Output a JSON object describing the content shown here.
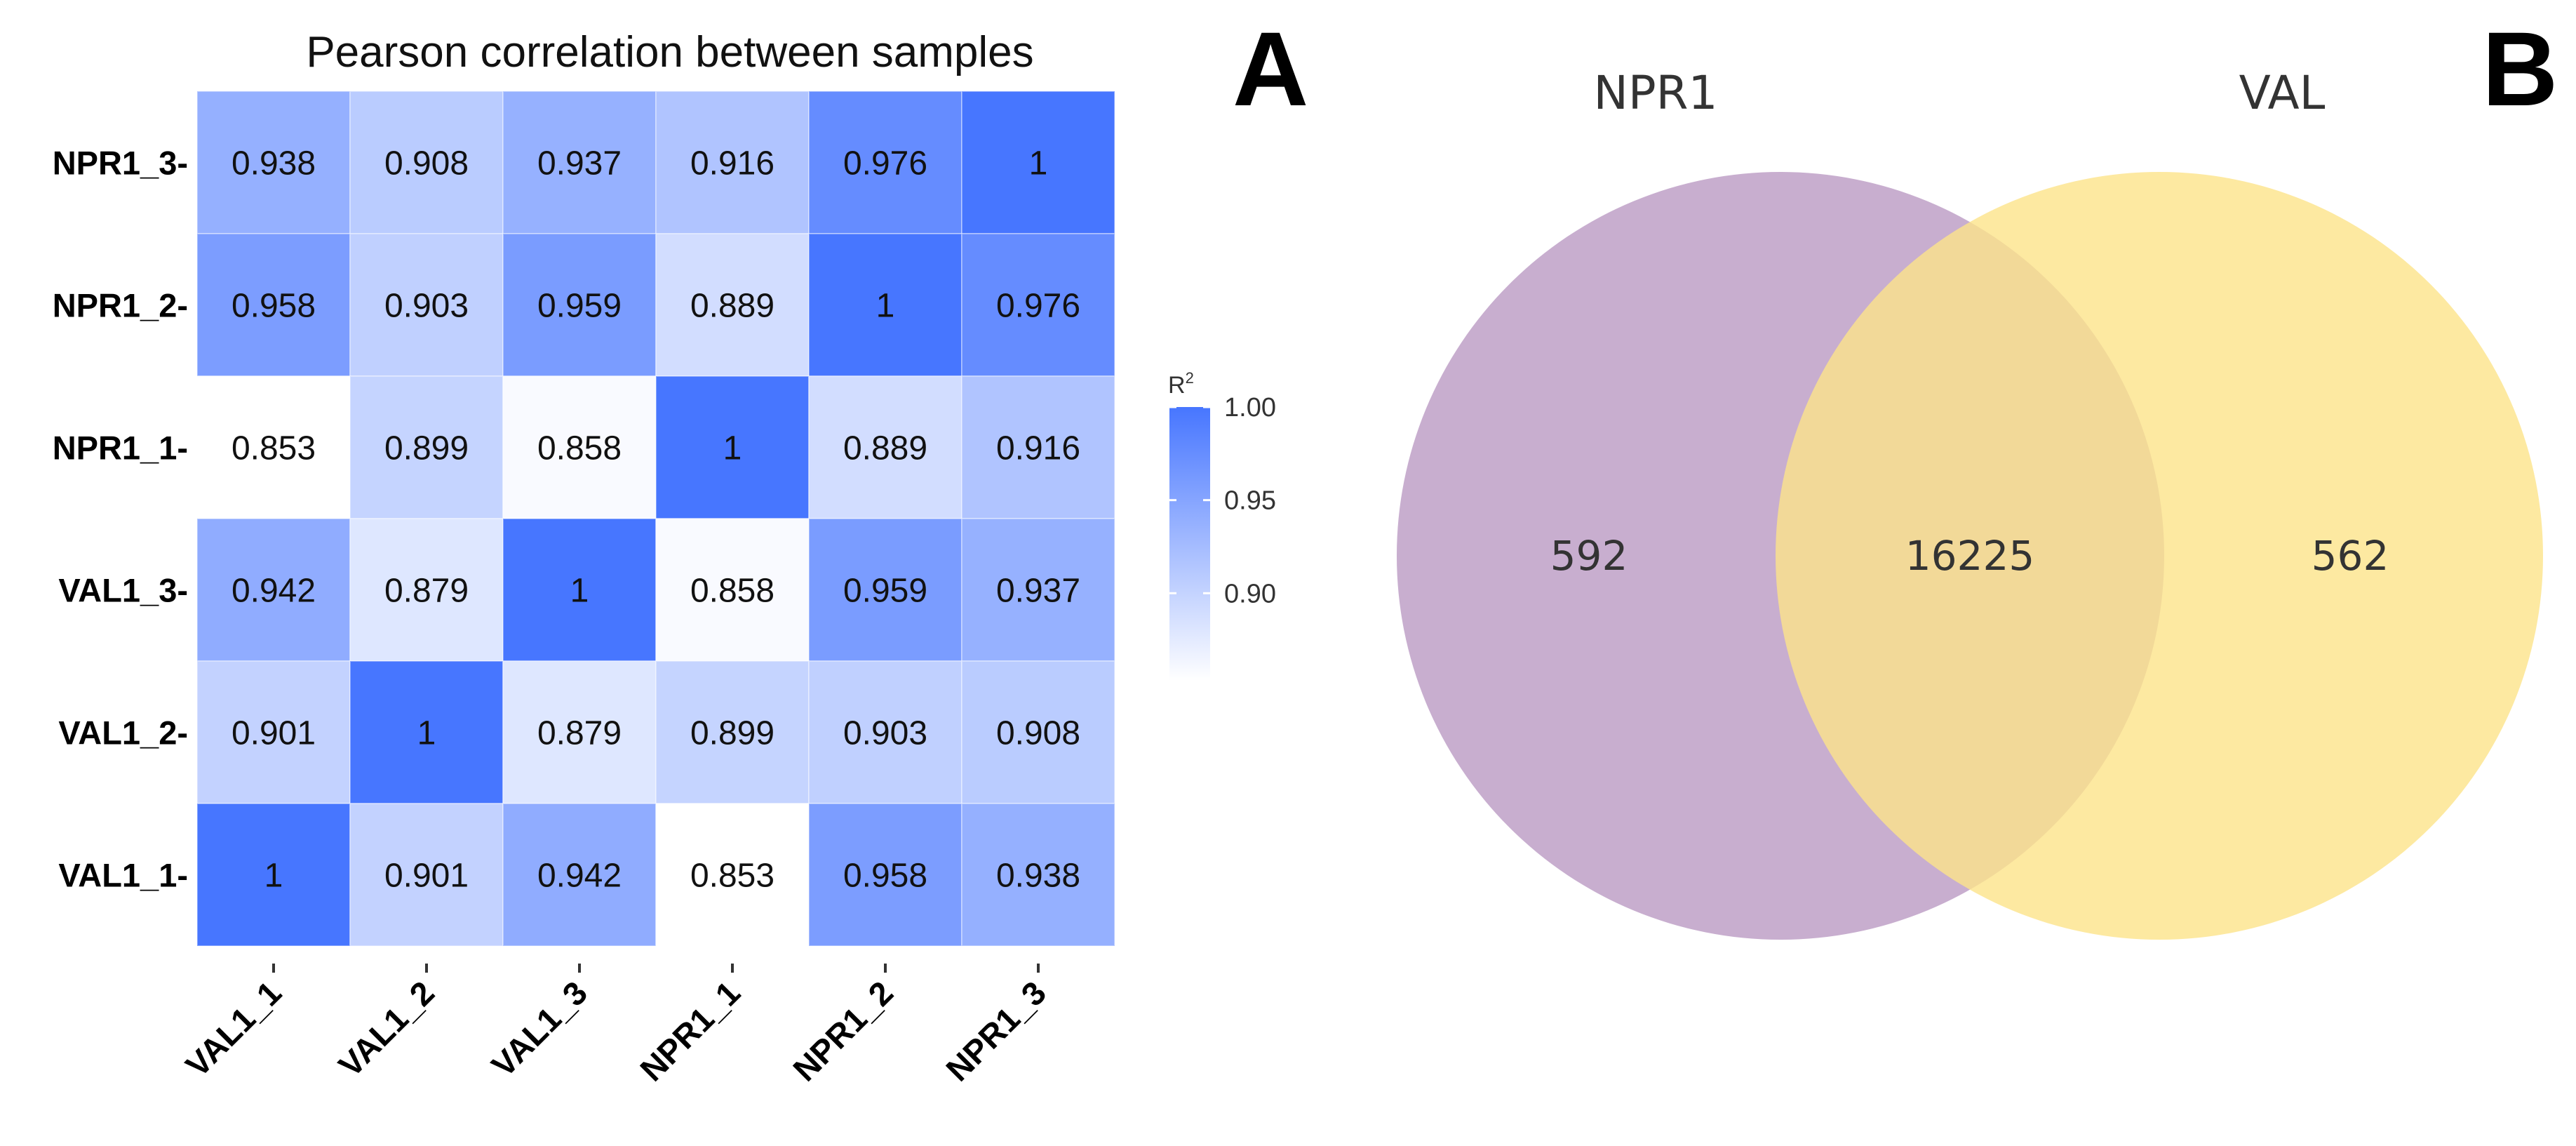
{
  "panel_a": {
    "letter": "A",
    "chart_data": {
      "type": "heatmap",
      "title": "Pearson correlation between samples",
      "x_categories": [
        "VAL1_1",
        "VAL1_2",
        "VAL1_3",
        "NPR1_1",
        "NPR1_2",
        "NPR1_3"
      ],
      "y_categories": [
        "NPR1_3",
        "NPR1_2",
        "NPR1_1",
        "VAL1_3",
        "VAL1_2",
        "VAL1_1"
      ],
      "y_tick_labels": [
        "NPR1_3-",
        "NPR1_2-",
        "NPR1_1-",
        "VAL1_3-",
        "VAL1_2-",
        "VAL1_1-"
      ],
      "values": [
        [
          "0.938",
          "0.908",
          "0.937",
          "0.916",
          "0.976",
          "1"
        ],
        [
          "0.958",
          "0.903",
          "0.959",
          "0.889",
          "1",
          "0.976"
        ],
        [
          "0.853",
          "0.899",
          "0.858",
          "1",
          "0.889",
          "0.916"
        ],
        [
          "0.942",
          "0.879",
          "1",
          "0.858",
          "0.959",
          "0.937"
        ],
        [
          "0.901",
          "1",
          "0.879",
          "0.899",
          "0.903",
          "0.908"
        ],
        [
          "1",
          "0.901",
          "0.942",
          "0.853",
          "0.958",
          "0.938"
        ]
      ],
      "color_scale": {
        "min": 0.853,
        "max": 1.0,
        "low_color": "#ffffff",
        "high_color": "#4776ff"
      },
      "legend": {
        "title": "R",
        "title_superscript": "2",
        "ticks": [
          {
            "value": 1.0,
            "label": "1.00"
          },
          {
            "value": 0.95,
            "label": "0.95"
          },
          {
            "value": 0.9,
            "label": "0.90"
          }
        ],
        "position": "right"
      }
    }
  },
  "panel_b": {
    "letter": "B",
    "venn": {
      "type": "venn",
      "sets": [
        {
          "name": "NPR1",
          "unique_count": "592",
          "color": "#9b6ca8",
          "opacity": 0.55
        },
        {
          "name": "VAL",
          "unique_count": "562",
          "color": "#fce38a",
          "opacity": 0.8
        }
      ],
      "intersection_count": "16225"
    }
  }
}
